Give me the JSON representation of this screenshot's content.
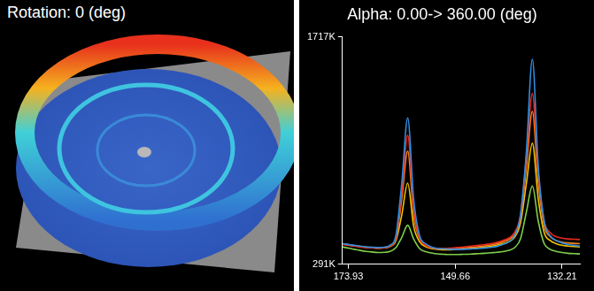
{
  "left_panel": {
    "title": "Rotation: 0 (deg)"
  },
  "chart_data": {
    "type": "line",
    "title": "Alpha: 0.00-> 360.00 (deg)",
    "categories": [
      null,
      "173.93",
      null,
      null,
      null,
      null,
      null,
      null,
      null,
      null,
      null,
      null,
      null,
      null,
      null,
      null,
      null,
      null,
      null,
      "149.66",
      null,
      null,
      null,
      null,
      null,
      null,
      null,
      null,
      null,
      null,
      null,
      null,
      null,
      null,
      null,
      null,
      null,
      "132.21",
      null,
      null,
      null
    ],
    "series": [
      {
        "color": "#2f8fe0",
        "values": [
          420,
          415,
          410,
          405,
          400,
          398,
          396,
          398,
          410,
          470,
          800,
          1209,
          700,
          470,
          420,
          400,
          390,
          388,
          386,
          385,
          385,
          386,
          388,
          390,
          393,
          397,
          403,
          415,
          430,
          470,
          600,
          1000,
          1576,
          900,
          560,
          470,
          440,
          425,
          415,
          410,
          405
        ]
      },
      {
        "color": "#e8291c",
        "values": [
          415,
          410,
          405,
          400,
          396,
          394,
          392,
          394,
          405,
          455,
          740,
          1100,
          640,
          455,
          410,
          395,
          390,
          390,
          392,
          395,
          398,
          402,
          406,
          410,
          415,
          420,
          428,
          440,
          455,
          490,
          600,
          960,
          1362,
          860,
          560,
          490,
          465,
          455,
          450,
          448,
          446
        ]
      },
      {
        "color": "#f5821f",
        "values": [
          418,
          412,
          406,
          401,
          397,
          395,
          393,
          395,
          405,
          450,
          700,
          1000,
          600,
          450,
          410,
          395,
          388,
          387,
          388,
          390,
          392,
          395,
          398,
          402,
          406,
          412,
          420,
          432,
          445,
          478,
          580,
          900,
          1250,
          800,
          530,
          465,
          440,
          430,
          425,
          422,
          420
        ]
      },
      {
        "color": "#f2c200",
        "values": [
          420,
          414,
          408,
          403,
          398,
          395,
          393,
          394,
          402,
          438,
          600,
          800,
          530,
          432,
          402,
          390,
          384,
          382,
          382,
          384,
          386,
          388,
          391,
          395,
          399,
          404,
          410,
          420,
          432,
          460,
          550,
          800,
          1050,
          700,
          490,
          440,
          420,
          410,
          405,
          402,
          400
        ]
      },
      {
        "color": "#7fcf4a",
        "values": [
          400,
          392,
          385,
          378,
          372,
          368,
          365,
          366,
          372,
          395,
          460,
          536,
          450,
          390,
          370,
          362,
          356,
          354,
          352,
          352,
          353,
          354,
          356,
          358,
          360,
          363,
          366,
          370,
          378,
          395,
          450,
          620,
          781,
          560,
          420,
          385,
          372,
          365,
          360,
          358,
          356
        ]
      }
    ],
    "ylim": [
      291,
      1717
    ],
    "yticks": [
      {
        "value": 291,
        "label": "291K"
      },
      {
        "value": 1717,
        "label": "1717K"
      }
    ],
    "grid": false
  }
}
